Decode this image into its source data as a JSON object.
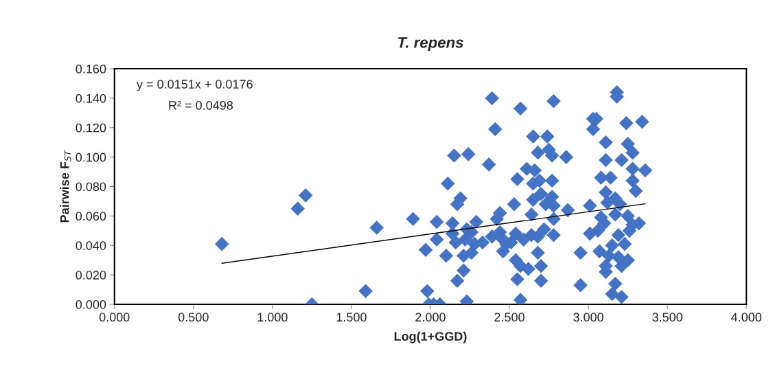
{
  "chart_data": {
    "type": "scatter",
    "title": "T. repens",
    "xlabel": "Log(1+GGD)",
    "ylabel": "Pairwise F$_{ST}$",
    "annotations": [
      "y = 0.0151x + 0.0176",
      "R² = 0.0498"
    ],
    "xlim": [
      0,
      4
    ],
    "ylim": [
      0,
      0.16
    ],
    "xticks": [
      {
        "value": 0,
        "label": "0.000"
      },
      {
        "value": 0.5,
        "label": "0.500"
      },
      {
        "value": 1,
        "label": "1.000"
      },
      {
        "value": 1.5,
        "label": "1.500"
      },
      {
        "value": 2,
        "label": "2.000"
      },
      {
        "value": 2.5,
        "label": "2.500"
      },
      {
        "value": 3,
        "label": "3.000"
      },
      {
        "value": 3.5,
        "label": "3.500"
      },
      {
        "value": 4,
        "label": "4.000"
      }
    ],
    "yticks": [
      {
        "value": 0,
        "label": "0.000"
      },
      {
        "value": 0.02,
        "label": "0.020"
      },
      {
        "value": 0.04,
        "label": "0.040"
      },
      {
        "value": 0.06,
        "label": "0.060"
      },
      {
        "value": 0.08,
        "label": "0.080"
      },
      {
        "value": 0.1,
        "label": "0.100"
      },
      {
        "value": 0.12,
        "label": "0.120"
      },
      {
        "value": 0.14,
        "label": "0.140"
      },
      {
        "value": 0.16,
        "label": "0.160"
      }
    ],
    "grid": false,
    "legend": false,
    "series": [
      {
        "color": "#4472c4",
        "marker": "diamond",
        "x": [
          0.68,
          1.16,
          1.21,
          1.25,
          1.59,
          1.66,
          1.89,
          2.39,
          2.57,
          2.78,
          2.41,
          2.65,
          2.74,
          2.15,
          2.24,
          2.68,
          2.75,
          2.77,
          2.86,
          2.37,
          2.61,
          2.66,
          2.55,
          2.11,
          2.65,
          2.69,
          2.77,
          2.7,
          2.77,
          2.65,
          2.19,
          2.17,
          2.53,
          2.73,
          2.78,
          2.87,
          2.44,
          2.42,
          2.64,
          2.78,
          2.04,
          2.14,
          2.29,
          2.14,
          2.23,
          2.26,
          2.04,
          1.97,
          2.16,
          2.22,
          2.28,
          2.33,
          2.39,
          2.44,
          2.46,
          2.48,
          2.51,
          2.46,
          2.54,
          2.59,
          2.64,
          2.68,
          2.72,
          2.78,
          2.1,
          2.21,
          2.26,
          2.54,
          2.57,
          2.62,
          2.68,
          2.7,
          2.21,
          2.17,
          2.55,
          2.7,
          1.98,
          1.99,
          2.02,
          2.06,
          2.23,
          2.57,
          3.18,
          3.18,
          3.03,
          3.05,
          3.03,
          3.24,
          3.34,
          3.11,
          3.25,
          3.28,
          3.11,
          3.21,
          3.28,
          3.36,
          3.08,
          3.14,
          3.28,
          3.3,
          3.11,
          3.17,
          3.12,
          3.2,
          3.01,
          3.17,
          3.25,
          3.32,
          3.28,
          3.08,
          3.1,
          3.06,
          3.01,
          3.19,
          3.26,
          3.23,
          3.15,
          3.07,
          2.95,
          3.13,
          3.19,
          3.25,
          3.11,
          3.21,
          3.11,
          2.95,
          3.17,
          3.15,
          3.21
        ],
        "values": [
          0.041,
          0.065,
          0.074,
          0.0,
          0.009,
          0.052,
          0.058,
          0.14,
          0.133,
          0.138,
          0.119,
          0.114,
          0.114,
          0.101,
          0.102,
          0.103,
          0.105,
          0.101,
          0.1,
          0.095,
          0.092,
          0.091,
          0.085,
          0.082,
          0.082,
          0.084,
          0.084,
          0.075,
          0.073,
          0.071,
          0.072,
          0.068,
          0.068,
          0.068,
          0.067,
          0.064,
          0.062,
          0.058,
          0.061,
          0.058,
          0.056,
          0.055,
          0.056,
          0.048,
          0.051,
          0.049,
          0.044,
          0.037,
          0.042,
          0.044,
          0.041,
          0.042,
          0.046,
          0.049,
          0.044,
          0.041,
          0.042,
          0.036,
          0.048,
          0.044,
          0.047,
          0.046,
          0.051,
          0.047,
          0.033,
          0.033,
          0.035,
          0.03,
          0.026,
          0.024,
          0.035,
          0.026,
          0.023,
          0.016,
          0.017,
          0.016,
          0.009,
          0.0,
          0.0,
          0.0,
          0.002,
          0.003,
          0.144,
          0.141,
          0.126,
          0.126,
          0.119,
          0.123,
          0.124,
          0.11,
          0.109,
          0.103,
          0.098,
          0.098,
          0.092,
          0.091,
          0.086,
          0.086,
          0.084,
          0.077,
          0.076,
          0.072,
          0.069,
          0.068,
          0.067,
          0.061,
          0.06,
          0.055,
          0.054,
          0.059,
          0.055,
          0.05,
          0.048,
          0.047,
          0.05,
          0.041,
          0.04,
          0.036,
          0.035,
          0.033,
          0.032,
          0.03,
          0.026,
          0.026,
          0.022,
          0.013,
          0.014,
          0.007,
          0.005
        ]
      },
      {
        "type": "line",
        "marker": "none",
        "color": "#000000",
        "x": [
          0.68,
          3.36
        ],
        "values": [
          0.0279,
          0.0683
        ]
      }
    ]
  }
}
